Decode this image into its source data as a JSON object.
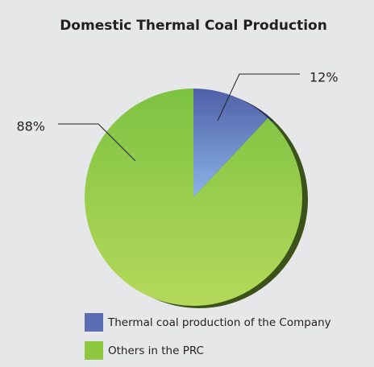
{
  "chart_data": {
    "type": "pie",
    "title": "Domestic Thermal Coal Production",
    "categories": [
      "Thermal coal production of the Company",
      "Others in the PRC"
    ],
    "values": [
      12,
      88
    ],
    "value_labels": [
      "12%",
      "88%"
    ],
    "colors": [
      "#5b6db3",
      "#8dc63f"
    ]
  }
}
